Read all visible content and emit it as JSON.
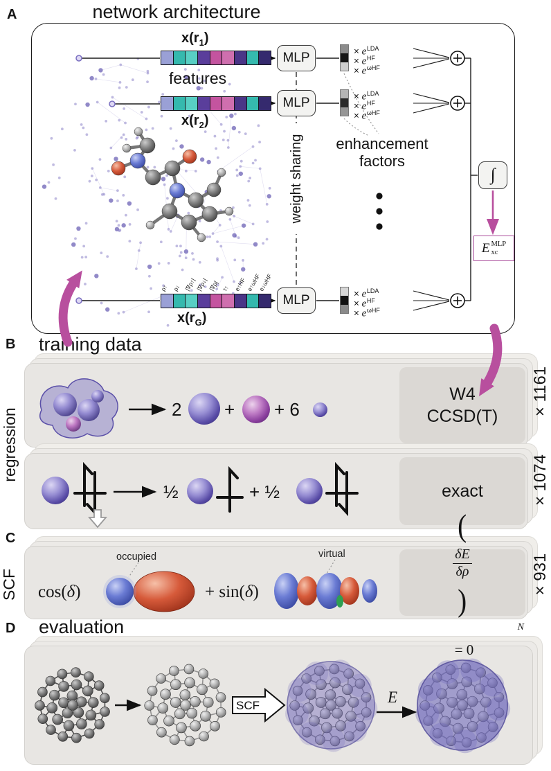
{
  "accent_color": "#b84f9e",
  "panel_a": {
    "label": "A",
    "title": "network architecture",
    "features_caption": "features",
    "weight_sharing_label": "weight sharing",
    "enhancement_label_line1": "enhancement",
    "enhancement_label_line2": "factors",
    "mlp_label": "MLP",
    "integral_symbol": "∫",
    "vector_labels": [
      {
        "main": "x(r",
        "sub": "1",
        "close": ")"
      },
      {
        "main": "x(r",
        "sub": "2",
        "close": ")"
      },
      {
        "main": "x(r",
        "sub": "G",
        "close": ")"
      }
    ],
    "feature_names": [
      "ρ↑",
      "ρ↓",
      "|∇ρ↑|",
      "|∇ρ↓|",
      "|∇ρ|",
      "τ↑",
      "e↑HF",
      "e↑ωHF",
      "e↓ωHF"
    ],
    "feature_cell_colors": [
      "#9aa0d6",
      "#35b9ae",
      "#58cfc4",
      "#5a3e9b",
      "#c4549f",
      "#cf6fae",
      "#4a3587",
      "#35b9ae",
      "#352a6e"
    ],
    "enhancement_bar_colors": [
      [
        "#8c8c8c",
        "#161616",
        "#cfcfcf"
      ],
      [
        "#b5b5b5",
        "#2b2b2b",
        "#969696"
      ],
      [
        "#d6d6d6",
        "#111111",
        "#8a8a8a"
      ]
    ],
    "multipliers": [
      {
        "times": "×",
        "base": "e",
        "sup": "LDA"
      },
      {
        "times": "×",
        "base": "e",
        "sup": "HF"
      },
      {
        "times": "×",
        "base": "e",
        "sup": "ωHF"
      }
    ],
    "output": {
      "base": "E",
      "sub": "xc",
      "sup": "MLP"
    }
  },
  "panel_b": {
    "label": "B",
    "title": "training data",
    "side_label": "regression",
    "atomization": {
      "coef_first": "2",
      "plus": "+",
      "coef_last": "+ 6",
      "method_line1": "W4",
      "method_line2": "CCSD(T)",
      "count": "× 1161"
    },
    "spin": {
      "half_first": "½",
      "half_second": "+ ½",
      "method": "exact",
      "count": "× 1074"
    }
  },
  "panel_c": {
    "label": "C",
    "side_label": "SCF",
    "cos_term": {
      "fn": "cos(",
      "arg": "δ",
      "close": ")"
    },
    "sin_term": {
      "fn": "+ sin(",
      "arg": "δ",
      "close": ")"
    },
    "occupied_label": "occupied",
    "virtual_label": "virtual",
    "stationarity": {
      "open": "(",
      "num": "δE",
      "den": "δρ",
      "close": ")",
      "sub": "N",
      "rhs": "= 0"
    },
    "count": "× 931"
  },
  "panel_d": {
    "label": "D",
    "title": "evaluation",
    "scf_arrow_label": "SCF",
    "energy_label": "E"
  }
}
